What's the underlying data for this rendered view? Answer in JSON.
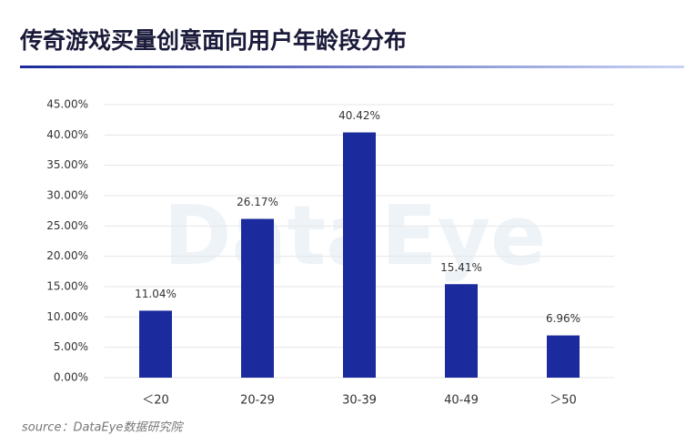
{
  "chart_data": {
    "type": "bar",
    "title": "传奇游戏买量创意面向用户年龄段分布",
    "categories": [
      "＜20",
      "20-29",
      "30-39",
      "40-49",
      "＞50"
    ],
    "values": [
      11.04,
      26.17,
      40.42,
      15.41,
      6.96
    ],
    "value_labels": [
      "11.04%",
      "26.17%",
      "40.42%",
      "15.41%",
      "6.96%"
    ],
    "color": "#1b2a9c",
    "ylim": [
      0,
      45
    ],
    "yticks": [
      {
        "value": 0,
        "label": "0.00%"
      },
      {
        "value": 5,
        "label": "5.00%"
      },
      {
        "value": 10,
        "label": "10.00%"
      },
      {
        "value": 15,
        "label": "15.00%"
      },
      {
        "value": 20,
        "label": "20.00%"
      },
      {
        "value": 25,
        "label": "25.00%"
      },
      {
        "value": 30,
        "label": "30.00%"
      },
      {
        "value": 35,
        "label": "35.00%"
      },
      {
        "value": 40,
        "label": "40.00%"
      },
      {
        "value": 45,
        "label": "45.00%"
      }
    ],
    "grid": true,
    "watermark": "DataEye",
    "source": "source：DataEye数据研究院"
  }
}
